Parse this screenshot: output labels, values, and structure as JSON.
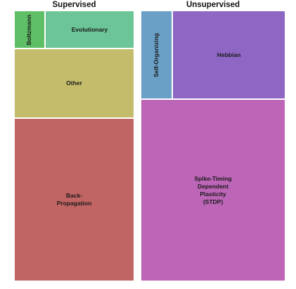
{
  "chart_data": {
    "type": "treemap",
    "title": "",
    "groups": [
      {
        "name": "Supervised",
        "items": [
          {
            "label": "Boltzmann",
            "value": 2,
            "color": "#5fbf66"
          },
          {
            "label": "Evolutionary",
            "value": 6,
            "color": "#6cc597"
          },
          {
            "label": "Other",
            "value": 15,
            "color": "#c4bc6b"
          },
          {
            "label": "Back-\nPropagation",
            "value": 43,
            "color": "#c06563"
          }
        ]
      },
      {
        "name": "Unsupervised",
        "items": [
          {
            "label": "Self-Organizing",
            "value": 4,
            "color": "#6a9fc6"
          },
          {
            "label": "Hebbian",
            "value": 12,
            "color": "#8e67c4"
          },
          {
            "label": "Spike-Timing\nDependent\nPlasticity\n(STDP)",
            "value": 50,
            "color": "#bd66b8"
          }
        ]
      }
    ]
  }
}
